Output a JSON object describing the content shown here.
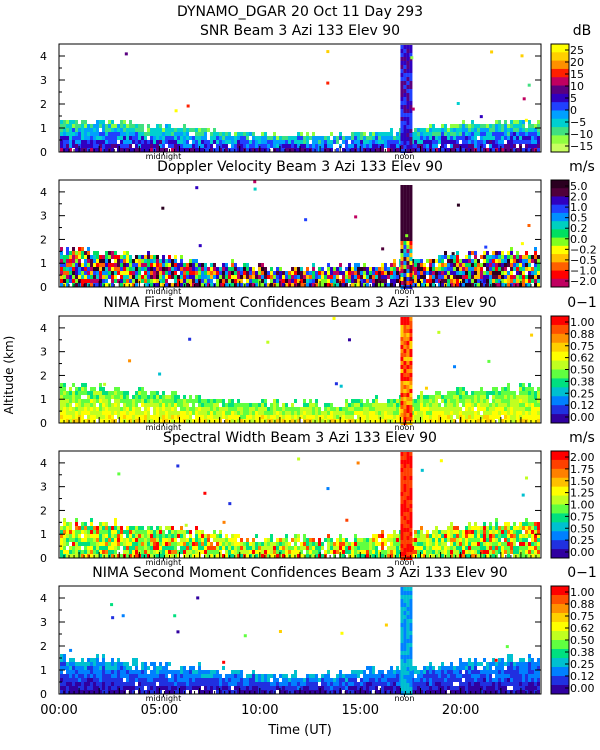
{
  "header": {
    "title_line1": "DYNAMO_DGAR  20 Oct 11 Day 293"
  },
  "common": {
    "xlabel": "Time (UT)",
    "ylabel": "Altitude (km)",
    "x_ticks": [
      "00:00",
      "05:00",
      "10:00",
      "15:00",
      "20:00"
    ],
    "x_tick_values": [
      0,
      5,
      10,
      15,
      20
    ],
    "xlim": [
      0,
      24
    ],
    "ylim": [
      0,
      4.5
    ],
    "y_ticks": [
      "0",
      "1",
      "2",
      "3",
      "4"
    ],
    "markers": [
      {
        "label": "midnight",
        "hour": 5.2
      },
      {
        "label": "noon",
        "hour": 17.2
      }
    ]
  },
  "chart_data": [
    {
      "type": "heatmap",
      "title": "SNR Beam 3 Azi 133 Elev 90",
      "unit": "dB",
      "colorbar_ticks": [
        "25",
        "20",
        "15",
        "10",
        "5",
        "0",
        "−5",
        "−10",
        "−15"
      ],
      "colorbar_colors": [
        "#ffff00",
        "#ffd000",
        "#ff9000",
        "#ff2000",
        "#c00060",
        "#5a0080",
        "#3000c0",
        "#2040ff",
        "#00a0ff",
        "#00d0d0",
        "#40e080",
        "#90ff40",
        "#c8ff60"
      ],
      "value_range": [
        -15,
        25
      ]
    },
    {
      "type": "heatmap",
      "title": "Doppler Velocity Beam 3 Azi 133 Elev 90",
      "unit": "m/s",
      "colorbar_ticks": [
        "5.0",
        "2.0",
        "1.0",
        "0.5",
        "0.2",
        "0.0",
        "−0.2",
        "−0.5",
        "−1.0",
        "−2.0"
      ],
      "colorbar_colors": [
        "#2a0020",
        "#50003a",
        "#3000c0",
        "#2040ff",
        "#0090ff",
        "#00d0c0",
        "#00e060",
        "#80ff20",
        "#ffff00",
        "#ffc000",
        "#ff6000",
        "#ff0000",
        "#c00060"
      ],
      "value_range": [
        -2.0,
        5.0
      ]
    },
    {
      "type": "heatmap",
      "title": "NIMA First Moment Confidences Beam 3 Azi 133 Elev 90",
      "unit": "0−1",
      "colorbar_ticks": [
        "1.00",
        "0.88",
        "0.75",
        "0.62",
        "0.50",
        "0.38",
        "0.25",
        "0.12",
        "0.00"
      ],
      "colorbar_colors": [
        "#ff0000",
        "#ff5000",
        "#ff9000",
        "#ffd000",
        "#ffff00",
        "#c0ff20",
        "#60ff40",
        "#00e080",
        "#00c0d0",
        "#0080ff",
        "#2030e0",
        "#3000a0"
      ],
      "value_range": [
        0,
        1
      ]
    },
    {
      "type": "heatmap",
      "title": "Spectral Width Beam 3 Azi 133 Elev 90",
      "unit": "m/s",
      "colorbar_ticks": [
        "2.00",
        "1.75",
        "1.50",
        "1.25",
        "1.00",
        "0.75",
        "0.50",
        "0.25",
        "0.00"
      ],
      "colorbar_colors": [
        "#ff0000",
        "#ff4000",
        "#ff8000",
        "#ffc000",
        "#ffff00",
        "#c0ff20",
        "#60ff40",
        "#00e080",
        "#00c0d0",
        "#0080ff",
        "#2030e0",
        "#3000a0"
      ],
      "value_range": [
        0,
        2
      ]
    },
    {
      "type": "heatmap",
      "title": "NIMA Second Moment Confidences Beam 3 Azi 133 Elev 90",
      "unit": "0−1",
      "colorbar_ticks": [
        "1.00",
        "0.88",
        "0.75",
        "0.62",
        "0.50",
        "0.38",
        "0.25",
        "0.12",
        "0.00"
      ],
      "colorbar_colors": [
        "#ff0000",
        "#ff5000",
        "#ff9000",
        "#ffd000",
        "#ffff00",
        "#c0ff20",
        "#60ff40",
        "#00e080",
        "#00c0d0",
        "#0080ff",
        "#2030e0",
        "#3000a0"
      ],
      "value_range": [
        0,
        1
      ]
    }
  ]
}
